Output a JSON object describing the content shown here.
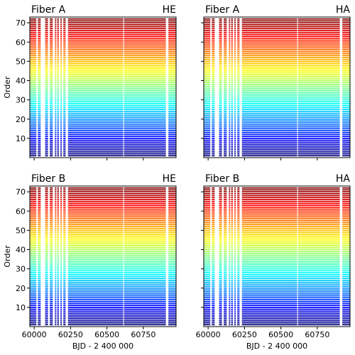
{
  "chart_data": [
    {
      "type": "heatmap",
      "title_left": "Fiber A",
      "title_right": "HE",
      "ylabel": "Order",
      "xlabel": "",
      "xlim": [
        59970,
        60975
      ],
      "ylim": [
        0,
        73
      ],
      "yticks": [
        10,
        20,
        30,
        40,
        50,
        60,
        70
      ],
      "xticks": [
        60000,
        60250,
        60500,
        60750
      ],
      "xtick_labels": [],
      "orders": [
        1,
        72
      ],
      "gaps": [
        [
          60015,
          60025
        ],
        [
          60045,
          60075
        ],
        [
          60095,
          60107
        ],
        [
          60128,
          60142
        ],
        [
          60152,
          60158
        ],
        [
          60170,
          60180
        ],
        [
          60190,
          60200
        ],
        [
          60216,
          60232
        ],
        [
          60612,
          60616
        ],
        [
          60905,
          60922
        ]
      ]
    },
    {
      "type": "heatmap",
      "title_left": "Fiber A",
      "title_right": "HA",
      "ylabel": "",
      "xlabel": "",
      "xlim": [
        59970,
        60975
      ],
      "ylim": [
        0,
        73
      ],
      "yticks": [
        10,
        20,
        30,
        40,
        50,
        60,
        70
      ],
      "ytick_labels": [],
      "xticks": [
        60000,
        60250,
        60500,
        60750
      ],
      "xtick_labels": [],
      "orders": [
        1,
        72
      ],
      "gaps": [
        [
          60015,
          60025
        ],
        [
          60045,
          60075
        ],
        [
          60095,
          60107
        ],
        [
          60128,
          60142
        ],
        [
          60152,
          60158
        ],
        [
          60170,
          60180
        ],
        [
          60190,
          60200
        ],
        [
          60216,
          60232
        ],
        [
          60612,
          60616
        ],
        [
          60905,
          60922
        ]
      ]
    },
    {
      "type": "heatmap",
      "title_left": "Fiber B",
      "title_right": "HE",
      "ylabel": "Order",
      "xlabel": "BJD - 2 400 000",
      "xlim": [
        59970,
        60975
      ],
      "ylim": [
        0,
        73
      ],
      "yticks": [
        10,
        20,
        30,
        40,
        50,
        60,
        70
      ],
      "xticks": [
        60000,
        60250,
        60500,
        60750
      ],
      "xtick_labels": [
        "60000",
        "60250",
        "60500",
        "60750"
      ],
      "orders": [
        1,
        72
      ],
      "gaps": [
        [
          60015,
          60025
        ],
        [
          60045,
          60075
        ],
        [
          60095,
          60107
        ],
        [
          60128,
          60142
        ],
        [
          60152,
          60158
        ],
        [
          60170,
          60180
        ],
        [
          60190,
          60200
        ],
        [
          60216,
          60232
        ],
        [
          60612,
          60616
        ],
        [
          60905,
          60922
        ]
      ]
    },
    {
      "type": "heatmap",
      "title_left": "Fiber B",
      "title_right": "HA",
      "ylabel": "",
      "xlabel": "BJD - 2 400 000",
      "xlim": [
        59970,
        60975
      ],
      "ylim": [
        0,
        73
      ],
      "yticks": [
        10,
        20,
        30,
        40,
        50,
        60,
        70
      ],
      "ytick_labels": [],
      "xticks": [
        60000,
        60250,
        60500,
        60750
      ],
      "xtick_labels": [
        "60000",
        "60250",
        "60500",
        "60750"
      ],
      "orders": [
        1,
        72
      ],
      "gaps": [
        [
          60015,
          60025
        ],
        [
          60045,
          60075
        ],
        [
          60095,
          60107
        ],
        [
          60128,
          60142
        ],
        [
          60152,
          60158
        ],
        [
          60170,
          60180
        ],
        [
          60190,
          60200
        ],
        [
          60216,
          60232
        ],
        [
          60612,
          60616
        ],
        [
          60905,
          60922
        ]
      ]
    }
  ]
}
